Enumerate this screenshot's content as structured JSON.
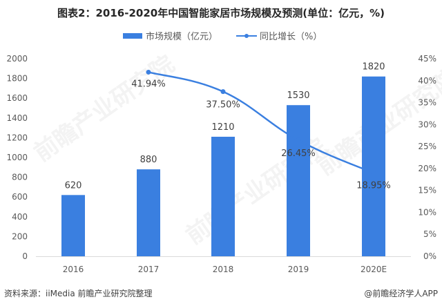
{
  "title": "图表2：2016-2020年中国智能家居市场规模及预测(单位：亿元，%)",
  "legend": {
    "bar_label": "市场规模（亿元）",
    "line_label": "同比增长（%）"
  },
  "colors": {
    "bar": "#3a7fe0",
    "line": "#3a7fe0",
    "axis_text": "#595959",
    "baseline": "#d9d9d9"
  },
  "footer": {
    "source": "资料来源：iiMedia 前瞻产业研究院整理",
    "credit": "@前瞻经济学人APP"
  },
  "watermark": "前瞻产业研究院",
  "chart_data": {
    "type": "bar",
    "title": "图表2：2016-2020年中国智能家居市场规模及预测(单位：亿元，%)",
    "categories": [
      "2016",
      "2017",
      "2018",
      "2019",
      "2020E"
    ],
    "series": [
      {
        "name": "市场规模（亿元）",
        "type": "bar",
        "axis": "left",
        "values": [
          620,
          880,
          1210,
          1530,
          1820
        ],
        "labels": [
          "620",
          "880",
          "1210",
          "1530",
          "1820"
        ]
      },
      {
        "name": "同比增长（%）",
        "type": "line",
        "axis": "right",
        "values": [
          null,
          41.94,
          37.5,
          26.45,
          18.95
        ],
        "labels": [
          "",
          "41.94%",
          "37.50%",
          "26.45%",
          "18.95%"
        ]
      }
    ],
    "xlabel": "",
    "ylabel": "",
    "ylim": [
      0,
      2000
    ],
    "y_ticks": [
      "0",
      "200",
      "400",
      "600",
      "800",
      "1000",
      "1200",
      "1400",
      "1600",
      "1800",
      "2000"
    ],
    "y2lim": [
      0,
      45
    ],
    "y2_ticks": [
      "0%",
      "5%",
      "10%",
      "15%",
      "20%",
      "25%",
      "30%",
      "35%",
      "40%",
      "45%"
    ],
    "grid": false,
    "legend_position": "top"
  }
}
